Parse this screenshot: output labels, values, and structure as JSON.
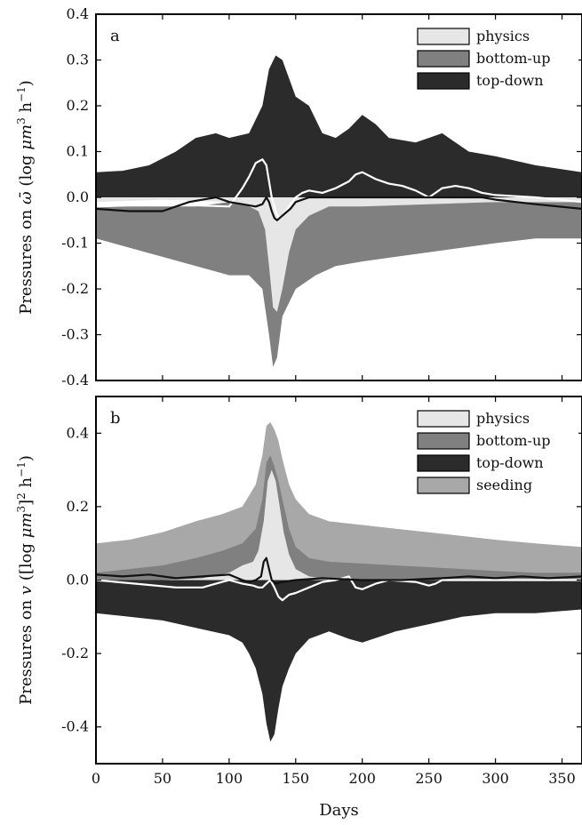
{
  "chart_data": [
    {
      "type": "area",
      "panel_label": "a",
      "ylabel": "Pressures on ω̄ (log μm³ h⁻¹)",
      "ylabel_parts": [
        "Pressures on ",
        "ω̄",
        " (log ",
        "μm",
        "3",
        " h",
        "−1",
        ")"
      ],
      "xlim": [
        0,
        365
      ],
      "ylim": [
        -0.4,
        0.4
      ],
      "yticks": [
        -0.4,
        -0.3,
        -0.2,
        -0.1,
        0.0,
        0.1,
        0.2,
        0.3,
        0.4
      ],
      "ytick_labels": [
        "-0.4",
        "-0.3",
        "-0.2",
        "-0.1",
        "0.0",
        "0.1",
        "0.2",
        "0.3",
        "0.4"
      ],
      "xticks": [
        0,
        50,
        100,
        150,
        200,
        250,
        300,
        350
      ],
      "xtick_labels": [],
      "legend_position": "top-right",
      "legend": [
        {
          "label": "physics",
          "color": "#e6e6e6"
        },
        {
          "label": "bottom-up",
          "color": "#808080"
        },
        {
          "label": "top-down",
          "color": "#2b2b2b"
        }
      ],
      "bands": [
        {
          "name": "top-down",
          "color": "#2b2b2b",
          "x": [
            0,
            20,
            40,
            60,
            75,
            90,
            100,
            115,
            125,
            130,
            135,
            140,
            145,
            150,
            155,
            160,
            170,
            180,
            190,
            200,
            210,
            220,
            240,
            250,
            260,
            265,
            270,
            280,
            300,
            330,
            365
          ],
          "top": [
            0.055,
            0.058,
            0.07,
            0.1,
            0.13,
            0.14,
            0.13,
            0.14,
            0.2,
            0.28,
            0.31,
            0.3,
            0.26,
            0.22,
            0.21,
            0.2,
            0.14,
            0.13,
            0.15,
            0.18,
            0.16,
            0.13,
            0.12,
            0.13,
            0.14,
            0.13,
            0.12,
            0.1,
            0.09,
            0.07,
            0.055
          ],
          "bottom": [
            0,
            0,
            0,
            0,
            0,
            0,
            0,
            0,
            0,
            0,
            0,
            0,
            0,
            0,
            0,
            0,
            0,
            0,
            0,
            0,
            0,
            0,
            0,
            0,
            0,
            0,
            0,
            0,
            0,
            0,
            0
          ]
        },
        {
          "name": "bottom-up",
          "color": "#808080",
          "x": [
            0,
            25,
            50,
            75,
            100,
            115,
            125,
            130,
            133,
            136,
            140,
            145,
            150,
            165,
            180,
            200,
            225,
            250,
            275,
            300,
            330,
            365
          ],
          "top": [
            -0.02,
            -0.02,
            -0.02,
            -0.02,
            -0.01,
            -0.01,
            -0.01,
            -0.02,
            -0.03,
            -0.04,
            -0.03,
            -0.02,
            -0.02,
            -0.02,
            -0.01,
            -0.01,
            -0.01,
            -0.01,
            -0.01,
            -0.01,
            -0.01,
            -0.01
          ],
          "bottom": [
            -0.09,
            -0.11,
            -0.13,
            -0.15,
            -0.17,
            -0.17,
            -0.2,
            -0.3,
            -0.37,
            -0.35,
            -0.26,
            -0.23,
            -0.2,
            -0.17,
            -0.15,
            -0.14,
            -0.13,
            -0.12,
            -0.11,
            -0.1,
            -0.09,
            -0.09
          ]
        },
        {
          "name": "physics",
          "color": "#e6e6e6",
          "x": [
            0,
            50,
            100,
            115,
            122,
            127,
            130,
            133,
            136,
            140,
            145,
            150,
            160,
            175,
            200,
            250,
            300,
            365
          ],
          "top": [
            0,
            0,
            0,
            0,
            0,
            0,
            0,
            0,
            0,
            0,
            0,
            0,
            0,
            0,
            0,
            0,
            0,
            0
          ],
          "bottom": [
            -0.01,
            -0.005,
            -0.01,
            -0.02,
            -0.03,
            -0.07,
            -0.15,
            -0.24,
            -0.25,
            -0.2,
            -0.12,
            -0.07,
            -0.04,
            -0.02,
            -0.02,
            -0.015,
            -0.01,
            -0.01
          ]
        }
      ],
      "lines": [
        {
          "name": "white-line",
          "color": "#ffffff",
          "x": [
            0,
            50,
            100,
            105,
            110,
            115,
            120,
            125,
            128,
            130,
            132,
            135,
            137,
            140,
            145,
            150,
            155,
            160,
            170,
            180,
            190,
            195,
            200,
            210,
            220,
            230,
            240,
            250,
            255,
            260,
            270,
            280,
            290,
            300,
            330,
            365
          ],
          "y": [
            -0.02,
            -0.015,
            -0.02,
            0.0,
            0.02,
            0.045,
            0.075,
            0.083,
            0.07,
            0.035,
            0.0,
            -0.03,
            -0.045,
            -0.04,
            -0.02,
            0.0,
            0.01,
            0.015,
            0.01,
            0.02,
            0.035,
            0.05,
            0.055,
            0.04,
            0.03,
            0.025,
            0.015,
            0.0,
            0.01,
            0.02,
            0.025,
            0.02,
            0.01,
            0.005,
            0.0,
            -0.01
          ]
        },
        {
          "name": "black-line",
          "color": "#111111",
          "x": [
            0,
            25,
            50,
            70,
            90,
            100,
            110,
            120,
            125,
            128,
            130,
            132,
            134,
            136,
            138,
            142,
            146,
            150,
            160,
            180,
            220,
            260,
            290,
            300,
            330,
            365
          ],
          "y": [
            -0.025,
            -0.03,
            -0.03,
            -0.01,
            0.0,
            -0.01,
            -0.015,
            -0.02,
            -0.015,
            0.0,
            -0.01,
            -0.03,
            -0.045,
            -0.05,
            -0.045,
            -0.035,
            -0.025,
            -0.01,
            0.0,
            0.0,
            0.0,
            0.0,
            0.0,
            -0.005,
            -0.015,
            -0.025
          ]
        }
      ]
    },
    {
      "type": "area",
      "panel_label": "b",
      "ylabel": "Pressures on v ([log μm³]² h⁻¹)",
      "ylabel_parts": [
        "Pressures on ",
        "v",
        " ([log ",
        "μm",
        "3",
        "]",
        "2",
        " h",
        "−1",
        ")"
      ],
      "xlabel": "Days",
      "xlim": [
        0,
        365
      ],
      "ylim": [
        -0.5,
        0.5
      ],
      "yticks": [
        -0.4,
        -0.2,
        0.0,
        0.2,
        0.4
      ],
      "ytick_labels": [
        "-0.4",
        "-0.2",
        "0.0",
        "0.2",
        "0.4"
      ],
      "xticks": [
        0,
        50,
        100,
        150,
        200,
        250,
        300,
        350
      ],
      "xtick_labels": [
        "0",
        "50",
        "100",
        "150",
        "200",
        "250",
        "300",
        "350"
      ],
      "legend_position": "top-right",
      "legend": [
        {
          "label": "physics",
          "color": "#e6e6e6"
        },
        {
          "label": "bottom-up",
          "color": "#808080"
        },
        {
          "label": "top-down",
          "color": "#2b2b2b"
        },
        {
          "label": "seeding",
          "color": "#a8a8a8"
        }
      ],
      "bands": [
        {
          "name": "seeding",
          "color": "#a8a8a8",
          "x": [
            0,
            25,
            50,
            75,
            95,
            110,
            120,
            125,
            128,
            131,
            134,
            137,
            140,
            145,
            150,
            160,
            175,
            200,
            225,
            250,
            275,
            300,
            330,
            365
          ],
          "top": [
            0.1,
            0.11,
            0.13,
            0.16,
            0.18,
            0.2,
            0.26,
            0.34,
            0.42,
            0.43,
            0.41,
            0.38,
            0.33,
            0.26,
            0.22,
            0.18,
            0.16,
            0.15,
            0.14,
            0.13,
            0.12,
            0.11,
            0.1,
            0.09
          ],
          "bottom": [
            0,
            0,
            0,
            0,
            0,
            0,
            0,
            0,
            0,
            0,
            0,
            0,
            0,
            0,
            0,
            0,
            0,
            0,
            0,
            0,
            0,
            0,
            0,
            0
          ]
        },
        {
          "name": "bottom-up",
          "color": "#808080",
          "x": [
            0,
            25,
            50,
            75,
            95,
            110,
            120,
            125,
            128,
            131,
            134,
            137,
            140,
            145,
            150,
            160,
            175,
            200,
            225,
            250,
            275,
            300,
            330,
            365
          ],
          "top": [
            0.02,
            0.03,
            0.04,
            0.06,
            0.08,
            0.1,
            0.14,
            0.22,
            0.32,
            0.34,
            0.31,
            0.27,
            0.22,
            0.14,
            0.09,
            0.06,
            0.05,
            0.045,
            0.04,
            0.035,
            0.03,
            0.025,
            0.02,
            0.02
          ],
          "bottom": [
            0,
            0,
            0,
            0,
            0,
            0,
            0,
            0,
            0,
            0,
            0,
            0,
            0,
            0,
            0,
            0,
            0,
            0,
            0,
            0,
            0,
            0,
            0,
            0
          ]
        },
        {
          "name": "physics",
          "color": "#e6e6e6",
          "x": [
            0,
            50,
            80,
            100,
            110,
            118,
            122,
            126,
            129,
            132,
            135,
            138,
            141,
            145,
            150,
            160,
            170,
            180,
            200,
            250,
            300,
            365
          ],
          "top": [
            0.0,
            0.0,
            0.005,
            0.02,
            0.04,
            0.05,
            0.08,
            0.16,
            0.27,
            0.3,
            0.27,
            0.2,
            0.13,
            0.07,
            0.03,
            0.01,
            0.005,
            0.0,
            0.0,
            0.0,
            0.0,
            0.0
          ],
          "bottom": [
            0,
            0,
            0,
            0,
            0,
            0,
            0,
            0,
            0,
            0,
            0,
            0,
            0,
            0,
            0,
            0,
            0,
            0,
            0,
            0,
            0,
            0
          ]
        },
        {
          "name": "top-down",
          "color": "#2b2b2b",
          "x": [
            0,
            25,
            50,
            75,
            100,
            110,
            115,
            120,
            125,
            128,
            131,
            134,
            137,
            140,
            145,
            150,
            160,
            175,
            190,
            200,
            225,
            250,
            275,
            300,
            330,
            365
          ],
          "top": [
            0,
            0,
            0,
            0,
            0,
            0,
            0,
            0,
            0,
            0,
            0,
            0,
            0,
            0,
            0,
            0,
            0,
            0,
            0,
            0,
            0,
            0,
            0,
            0,
            0,
            0
          ],
          "bottom": [
            -0.09,
            -0.1,
            -0.11,
            -0.13,
            -0.15,
            -0.17,
            -0.2,
            -0.24,
            -0.31,
            -0.39,
            -0.44,
            -0.42,
            -0.35,
            -0.29,
            -0.24,
            -0.2,
            -0.16,
            -0.14,
            -0.16,
            -0.17,
            -0.14,
            -0.12,
            -0.1,
            -0.09,
            -0.09,
            -0.08
          ]
        }
      ],
      "lines": [
        {
          "name": "white-line",
          "color": "#ffffff",
          "x": [
            0,
            30,
            60,
            80,
            90,
            100,
            110,
            118,
            122,
            125,
            128,
            131,
            134,
            137,
            140,
            145,
            150,
            160,
            170,
            180,
            190,
            195,
            200,
            210,
            220,
            240,
            250,
            255,
            260,
            270,
            300,
            330,
            365
          ],
          "y": [
            0.0,
            -0.01,
            -0.02,
            -0.02,
            -0.01,
            0.0,
            -0.01,
            -0.015,
            -0.02,
            -0.02,
            -0.01,
            0.0,
            -0.02,
            -0.045,
            -0.055,
            -0.04,
            -0.035,
            -0.02,
            -0.005,
            0.0,
            0.01,
            -0.02,
            -0.025,
            -0.01,
            0.0,
            -0.005,
            -0.015,
            -0.01,
            0.0,
            0.0,
            0.0,
            0.0,
            0.0
          ]
        },
        {
          "name": "black-line",
          "color": "#111111",
          "x": [
            0,
            20,
            40,
            60,
            80,
            100,
            110,
            115,
            120,
            124,
            126,
            128,
            130,
            132,
            135,
            140,
            150,
            170,
            200,
            230,
            260,
            280,
            300,
            320,
            340,
            365
          ],
          "y": [
            0.015,
            0.01,
            0.015,
            0.005,
            0.01,
            0.015,
            0.0,
            -0.005,
            0.0,
            0.01,
            0.05,
            0.06,
            0.03,
            0.0,
            -0.01,
            -0.005,
            0.0,
            0.005,
            0.0,
            0.0,
            0.005,
            0.01,
            0.005,
            0.01,
            0.005,
            0.01
          ]
        }
      ]
    }
  ]
}
